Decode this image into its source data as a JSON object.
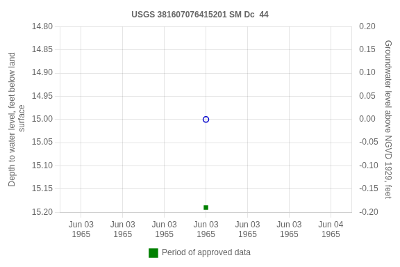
{
  "chart_data": {
    "type": "scatter",
    "title": "USGS 381607076415201 SM Dc  44",
    "y_label": "Depth to water level, feet below land\n surface",
    "y2_label": "Groundwater level above NGVD 1929, feet",
    "categories": [
      "Jun 03\n1965",
      "Jun 03\n1965",
      "Jun 03\n1965",
      "Jun 03\n1965",
      "Jun 03\n1965",
      "Jun 03\n1965",
      "Jun 04\n1965"
    ],
    "series": [
      {
        "color": "#0000cc",
        "marker": "circle",
        "values": [
          null,
          null,
          null,
          15.0,
          null,
          null,
          null
        ]
      },
      {
        "name": "Period of approved data",
        "color": "#008000",
        "marker": "square",
        "values": [
          null,
          null,
          null,
          15.19,
          null,
          null,
          null
        ]
      }
    ],
    "ylim": [
      15.2,
      14.8
    ],
    "yticks": [
      {
        "value": 14.8,
        "label": "14.80"
      },
      14.85,
      {
        "value": 14.9,
        "label": "14.90"
      },
      14.95,
      {
        "value": 15.0,
        "label": "15.00"
      },
      15.05,
      {
        "value": 15.1,
        "label": "15.10"
      },
      15.15,
      {
        "value": 15.2,
        "label": "15.20"
      }
    ],
    "y2lim": [
      -0.2,
      0.2
    ],
    "y2ticks": [
      {
        "value": 0.2,
        "label": "0.20"
      },
      0.15,
      {
        "value": 0.1,
        "label": "0.10"
      },
      0.05,
      {
        "value": 0.0,
        "label": "0.00"
      },
      -0.05,
      {
        "value": -0.1,
        "label": "-0.10"
      },
      -0.15,
      {
        "value": -0.2,
        "label": "-0.20"
      }
    ],
    "grid": true,
    "legend": "bottom"
  }
}
